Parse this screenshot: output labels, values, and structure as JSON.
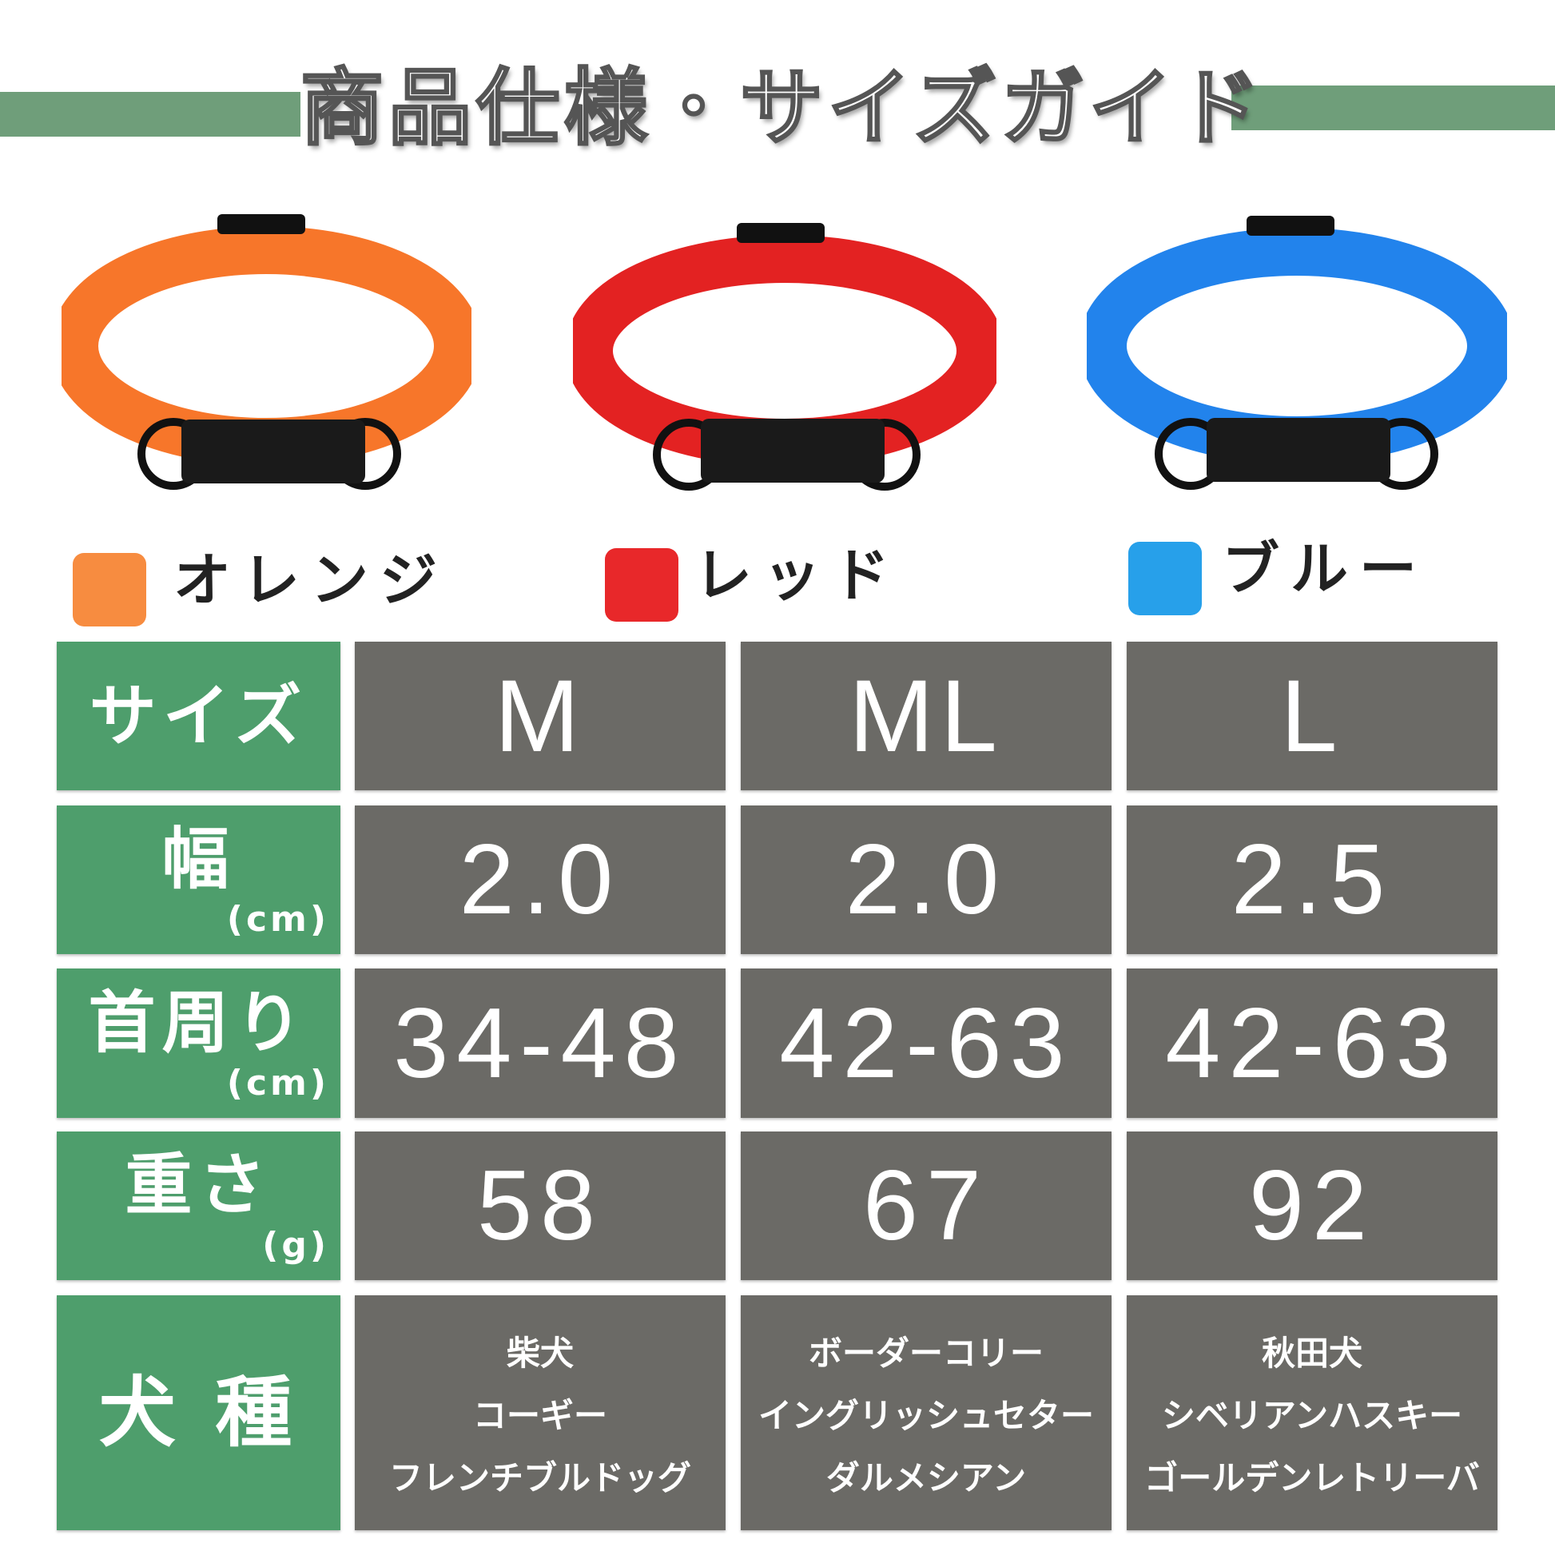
{
  "title": "商品仕様・サイズガイド",
  "colors": [
    {
      "label": "オレンジ",
      "hex": "#f78c40"
    },
    {
      "label": "レッド",
      "hex": "#e8282a"
    },
    {
      "label": "ブルー",
      "hex": "#27a0ea"
    }
  ],
  "table": {
    "row_headers": {
      "size": "サイズ",
      "width": "幅",
      "width_unit": "(cm)",
      "neck": "首周り",
      "neck_unit": "(cm)",
      "weight": "重さ",
      "weight_unit": "(g)",
      "breed": "犬 種"
    },
    "columns": [
      {
        "size": "M",
        "width": "2.0",
        "neck": "34-48",
        "weight": "58",
        "breeds": [
          "柴犬",
          "コーギー",
          "フレンチブルドッグ"
        ]
      },
      {
        "size": "ML",
        "width": "2.0",
        "neck": "42-63",
        "weight": "67",
        "breeds": [
          "ボーダーコリー",
          "イングリッシュセター",
          "ダルメシアン"
        ]
      },
      {
        "size": "L",
        "width": "2.5",
        "neck": "42-63",
        "weight": "92",
        "breeds": [
          "秋田犬",
          "シベリアンハスキー",
          "ゴールデンレトリーバ"
        ]
      }
    ]
  },
  "accent": {
    "header_green": "#4e9e6c",
    "cell_gray": "#6b6a66",
    "title_bar": "#6f9e7a"
  }
}
